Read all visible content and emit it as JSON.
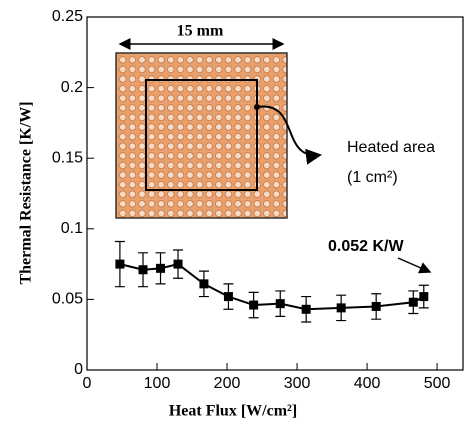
{
  "chart_data": {
    "type": "line",
    "xlabel": "Heat Flux [W/cm²]",
    "ylabel": "Thermal Resistance [K/W]",
    "x": [
      47,
      80,
      105,
      130,
      167,
      202,
      238,
      276,
      313,
      363,
      413,
      466,
      481
    ],
    "series": [
      {
        "color": "#000000",
        "values": [
          0.075,
          0.071,
          0.072,
          0.075,
          0.061,
          0.052,
          0.046,
          0.047,
          0.043,
          0.044,
          0.045,
          0.048,
          0.052
        ],
        "errors": [
          0.016,
          0.012,
          0.011,
          0.01,
          0.009,
          0.009,
          0.009,
          0.009,
          0.009,
          0.009,
          0.009,
          0.008,
          0.008
        ]
      }
    ],
    "xlim": [
      0,
      537
    ],
    "ylim": [
      0,
      0.25
    ],
    "xticks": [
      0,
      100,
      200,
      300,
      400,
      500
    ],
    "yticks": [
      0,
      0.05,
      0.1,
      0.15,
      0.2,
      0.25
    ],
    "annotations": [
      "0.052 K/W",
      "15 mm",
      "Heated area",
      "(1 cm²)"
    ]
  }
}
